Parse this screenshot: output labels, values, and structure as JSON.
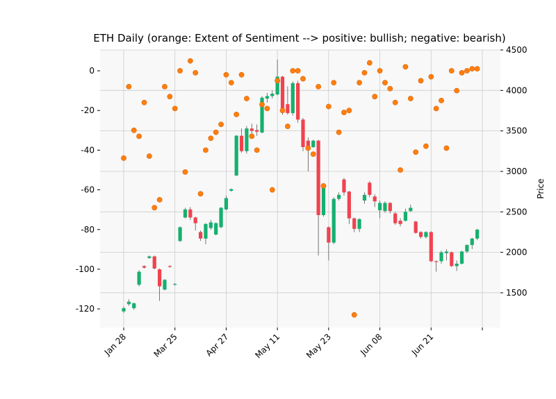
{
  "chart_data": {
    "type": "candlestick",
    "title": "ETH Daily (orange: Extent of Sentiment --> positive: bullish; negative: bearish)",
    "y2label": "Price",
    "categories": [
      "Jan 28",
      null,
      null,
      null,
      null,
      null,
      null,
      null,
      null,
      null,
      "Mar 25",
      null,
      null,
      null,
      null,
      null,
      null,
      null,
      null,
      null,
      "Apr 27",
      null,
      null,
      null,
      null,
      null,
      null,
      null,
      null,
      null,
      "May 11",
      null,
      null,
      null,
      null,
      null,
      null,
      null,
      null,
      null,
      "May 23",
      null,
      null,
      null,
      null,
      null,
      null,
      null,
      null,
      null,
      "Jun 08",
      null,
      null,
      null,
      null,
      null,
      null,
      null,
      null,
      null,
      "Jun 21",
      null,
      null,
      null,
      null,
      null,
      null,
      null,
      null,
      null
    ],
    "series": [
      {
        "type": "candlestick",
        "axis": "y2",
        "up_color": "#15b06f",
        "down_color": "#f0434f",
        "open": [
          1270,
          1360,
          1310,
          1600,
          1830,
          1930,
          1950,
          1790,
          1540,
          1830,
          1600,
          2140,
          2430,
          2530,
          2430,
          2250,
          2170,
          2300,
          2220,
          2310,
          2530,
          2760,
          2950,
          3440,
          3250,
          3530,
          3510,
          3480,
          3900,
          3930,
          3950,
          4170,
          3830,
          3720,
          4090,
          3640,
          3380,
          3300,
          3380,
          2460,
          2310,
          2120,
          2660,
          2900,
          2750,
          2420,
          2290,
          2640,
          2860,
          2690,
          2520,
          2510,
          2610,
          2480,
          2390,
          2390,
          2510,
          2380,
          2250,
          2190,
          2250,
          1890,
          1890,
          1990,
          2000,
          1830,
          1860,
          2010,
          2090,
          2170
        ],
        "high": [
          1330,
          1420,
          1380,
          1780,
          1840,
          1960,
          1960,
          1800,
          1670,
          1840,
          1620,
          2320,
          2550,
          2560,
          2440,
          2270,
          2360,
          2400,
          2370,
          2560,
          2700,
          2790,
          3450,
          3530,
          3560,
          3590,
          3580,
          3930,
          3970,
          4000,
          4380,
          4180,
          4050,
          4110,
          4120,
          3660,
          3420,
          3390,
          3390,
          2830,
          2320,
          2680,
          2740,
          2920,
          2760,
          2430,
          2420,
          2740,
          2880,
          2720,
          2640,
          2630,
          2620,
          2500,
          2420,
          2540,
          2590,
          2390,
          2260,
          2260,
          2260,
          1900,
          2020,
          2040,
          2010,
          1900,
          2020,
          2100,
          2180,
          2290
        ],
        "low": [
          1250,
          1340,
          1290,
          1580,
          1800,
          1920,
          1790,
          1400,
          1530,
          1810,
          1590,
          2130,
          2420,
          2400,
          2270,
          2140,
          2100,
          2280,
          2210,
          2300,
          2520,
          2750,
          2940,
          3230,
          3220,
          3420,
          3440,
          3470,
          3850,
          3900,
          3940,
          3700,
          3700,
          3690,
          3600,
          3250,
          3000,
          3290,
          1960,
          2440,
          1900,
          2100,
          2640,
          2700,
          2350,
          2250,
          2250,
          2600,
          2680,
          2560,
          2420,
          2490,
          2480,
          2340,
          2320,
          2380,
          2500,
          2230,
          2170,
          2170,
          1880,
          1760,
          1860,
          1900,
          1820,
          1770,
          1850,
          1990,
          2040,
          2150
        ],
        "close": [
          1310,
          1390,
          1370,
          1760,
          1810,
          1950,
          1800,
          1580,
          1660,
          1820,
          1610,
          2310,
          2530,
          2430,
          2360,
          2170,
          2350,
          2370,
          2360,
          2550,
          2670,
          2780,
          3440,
          3250,
          3530,
          3500,
          3490,
          3910,
          3930,
          3960,
          4170,
          3730,
          3720,
          4090,
          3640,
          3300,
          3290,
          3380,
          2460,
          2820,
          2120,
          2660,
          2710,
          2740,
          2420,
          2290,
          2410,
          2710,
          2710,
          2630,
          2610,
          2610,
          2510,
          2360,
          2350,
          2500,
          2550,
          2240,
          2190,
          2250,
          1890,
          1880,
          2000,
          2010,
          1830,
          1860,
          2010,
          2090,
          2170,
          2280
        ]
      },
      {
        "type": "scatter",
        "axis": "y",
        "color": "#ff7f0e",
        "values": [
          -44,
          -8,
          -30,
          -33,
          -16,
          -43,
          -69,
          -65,
          -8,
          -13,
          -19,
          0,
          -51,
          5,
          -1,
          -62,
          -40,
          -34,
          -31,
          -27,
          -2,
          -6,
          -22,
          -2,
          -14,
          -33,
          -40,
          -17,
          -19,
          -60,
          -5,
          -20,
          -28,
          0,
          0,
          -4,
          -39,
          -42,
          -8,
          -58,
          -18,
          -6,
          -31,
          -21,
          -20,
          -123,
          -6,
          -1,
          4,
          -13,
          0,
          -6,
          -9,
          -16,
          -50,
          2,
          -14,
          -41,
          -5,
          -38,
          -3,
          -19,
          -15,
          -39,
          0,
          -10,
          -1,
          0,
          1,
          1
        ]
      }
    ],
    "ylim": [
      -129.4,
      10.5
    ],
    "yticks": [
      -120,
      -100,
      -80,
      -60,
      -40,
      -20,
      0
    ],
    "y2lim": [
      1071,
      4500
    ],
    "y2ticks": [
      1500,
      2000,
      2500,
      3000,
      3500,
      4000,
      4500
    ],
    "grid": true
  }
}
